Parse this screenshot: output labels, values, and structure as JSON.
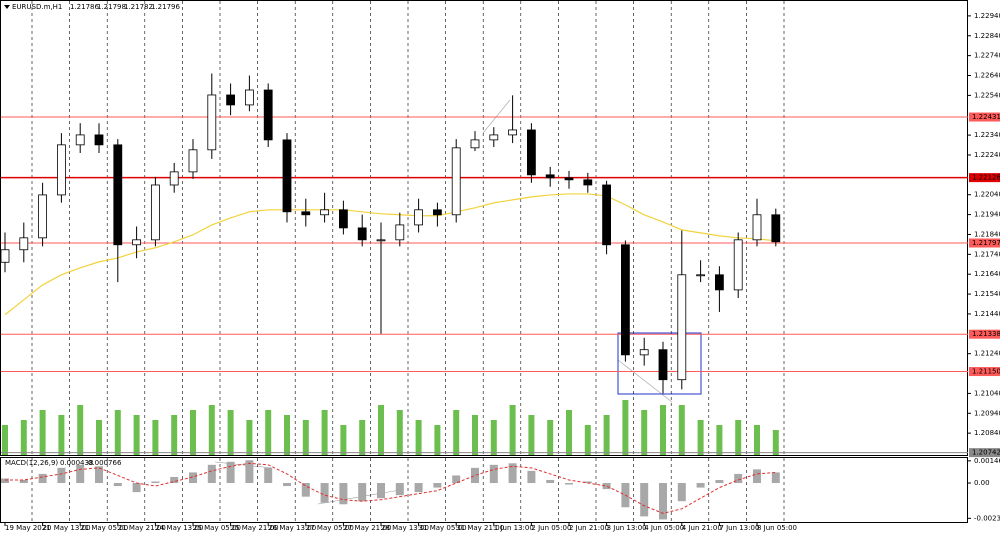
{
  "chart_data": [
    {
      "type": "candlestick",
      "symbol": "EURUSD.m,H1",
      "quote": [
        1.21786,
        1.21798,
        1.21782,
        1.21796
      ],
      "categories": [
        "19 May 2021",
        null,
        "20 May 13:00",
        null,
        "21 May 05:00",
        null,
        "21 May 21:00",
        null,
        "24 May 13:00",
        null,
        "25 May 05:00",
        null,
        "25 May 21:00",
        null,
        "26 May 13:00",
        null,
        "27 May 05:00",
        null,
        "27 May 21:00",
        null,
        "28 May 13:00",
        null,
        "31 May 05:00",
        null,
        "31 May 21:00",
        null,
        "1 Jun 13:00",
        null,
        "2 Jun 05:00",
        null,
        "2 Jun 21:00",
        null,
        "3 Jun 13:00",
        null,
        "4 Jun 05:00",
        null,
        "4 Jun 21:00",
        null,
        "7 Jun 13:00",
        null,
        "8 Jun 05:00",
        null
      ],
      "open": [
        1.217,
        1.21763,
        1.21823,
        1.22039,
        1.22291,
        1.22341,
        1.22291,
        1.21788,
        1.21813,
        1.22089,
        1.22155,
        1.22266,
        1.22542,
        1.22492,
        1.22567,
        1.22316,
        1.21954,
        1.21939,
        1.21964,
        1.21873,
        1.21813,
        1.21813,
        1.21888,
        1.21964,
        1.21939,
        1.22276,
        1.22316,
        1.22341,
        1.22366,
        1.2214,
        1.22125,
        1.22115,
        1.22089,
        1.21788,
        1.21234,
        1.2126,
        1.21109,
        1.21637,
        1.21637,
        1.21561,
        1.21813,
        1.21939
      ],
      "high": [
        1.2185,
        1.219,
        1.221,
        1.2235,
        1.224,
        1.224,
        1.2232,
        1.2188,
        1.2213,
        1.222,
        1.2232,
        1.2265,
        1.226,
        1.2264,
        1.226,
        1.2235,
        1.2202,
        1.2205,
        1.2201,
        1.2194,
        1.219,
        1.2195,
        1.2202,
        1.22,
        1.2232,
        1.2236,
        1.2238,
        1.2254,
        1.224,
        1.2218,
        1.2216,
        1.2215,
        1.2211,
        1.2181,
        1.2132,
        1.213,
        1.2186,
        1.2171,
        1.2168,
        1.2185,
        1.2202,
        1.2197
      ],
      "low": [
        1.2165,
        1.217,
        1.2178,
        1.22,
        1.2225,
        1.2225,
        1.216,
        1.2172,
        1.2178,
        1.2205,
        1.2212,
        1.2222,
        1.2244,
        1.2246,
        1.2228,
        1.219,
        1.2188,
        1.219,
        1.2184,
        1.2178,
        1.2134,
        1.2178,
        1.2185,
        1.2188,
        1.219,
        1.2226,
        1.2228,
        1.223,
        1.221,
        1.2208,
        1.2207,
        1.2205,
        1.2174,
        1.212,
        1.2118,
        1.2104,
        1.2106,
        1.216,
        1.2145,
        1.2152,
        1.2178,
        1.2178
      ],
      "close": [
        1.21763,
        1.21823,
        1.22039,
        1.22291,
        1.22341,
        1.22291,
        1.21788,
        1.21813,
        1.22089,
        1.22155,
        1.22266,
        1.22542,
        1.22492,
        1.22567,
        1.22316,
        1.21954,
        1.21939,
        1.21964,
        1.21873,
        1.21813,
        1.21813,
        1.21888,
        1.21964,
        1.21939,
        1.22276,
        1.22316,
        1.22341,
        1.22366,
        1.2214,
        1.22125,
        1.22115,
        1.22089,
        1.21788,
        1.21234,
        1.2126,
        1.21109,
        1.21637,
        1.21637,
        1.21561,
        1.21813,
        1.21939,
        1.21803
      ],
      "ma": {
        "color": "#f2d33c",
        "values": [
          1.21436,
          1.21511,
          1.21586,
          1.21637,
          1.21672,
          1.21702,
          1.21722,
          1.21752,
          1.21773,
          1.21803,
          1.21838,
          1.21888,
          1.21923,
          1.21954,
          1.21964,
          1.21964,
          1.21964,
          1.21964,
          1.21964,
          1.21954,
          1.21944,
          1.21939,
          1.21934,
          1.21934,
          1.21954,
          1.21974,
          1.21999,
          1.22014,
          1.22029,
          1.22039,
          1.22044,
          1.22044,
          1.22034,
          1.21989,
          1.21939,
          1.21903,
          1.21863,
          1.21848,
          1.21833,
          1.21823,
          1.21818,
          1.21808
        ]
      },
      "volume": {
        "color": "#6cbf4e",
        "values": [
          30,
          35,
          45,
          40,
          50,
          35,
          45,
          40,
          35,
          40,
          45,
          50,
          45,
          35,
          45,
          40,
          35,
          45,
          30,
          35,
          50,
          45,
          35,
          30,
          45,
          40,
          35,
          50,
          40,
          35,
          45,
          30,
          40,
          55,
          45,
          50,
          50,
          35,
          30,
          35,
          30,
          25
        ]
      },
      "levels": [
        {
          "value": 1.22431,
          "color": "#ff5a5a"
        },
        {
          "value": 1.22126,
          "color": "#e00000"
        },
        {
          "value": 1.21797,
          "color": "#ff5a5a"
        },
        {
          "value": 1.21338,
          "color": "#ff5a5a"
        },
        {
          "value": 1.2115,
          "label": "1.21150",
          "color": "#ff5a5a"
        },
        {
          "value": 1.20742,
          "color": "#8a8a8a"
        }
      ],
      "ylim": [
        1.2073,
        1.2302
      ],
      "yticks": [
        {
          "value": 1.2294,
          "label": "1.22940"
        },
        {
          "value": 1.2284,
          "label": "1.22840"
        },
        {
          "value": 1.2274,
          "label": "1.22740"
        },
        {
          "value": 1.2264,
          "label": "1.22640"
        },
        {
          "value": 1.2254,
          "label": "1.22540"
        },
        {
          "value": 1.2234,
          "label": "1.22340"
        },
        {
          "value": 1.2224,
          "label": "1.22240"
        },
        {
          "value": 1.2204,
          "label": "1.22040"
        },
        {
          "value": 1.2194,
          "label": "1.21940"
        },
        {
          "value": 1.2184,
          "label": "1.21840"
        },
        {
          "value": 1.2174,
          "label": "1.21740"
        },
        {
          "value": 1.2164,
          "label": "1.21640"
        },
        {
          "value": 1.2154,
          "label": "1.21540"
        },
        {
          "value": 1.2144,
          "label": "1.21440"
        },
        {
          "value": 1.2124,
          "label": "1.21240"
        },
        {
          "value": 1.2104,
          "label": "1.21040"
        },
        {
          "value": 1.2094,
          "label": "1.20940"
        },
        {
          "value": 1.2084,
          "label": "1.20840"
        }
      ],
      "grid": true
    },
    {
      "type": "macd",
      "title": "MACD(12,26,9)",
      "readings": [
        0.000438,
        0.000766
      ],
      "histogram": {
        "color": "#a8a8a8",
        "values": [
          0.0003,
          0.0002,
          0.0006,
          0.001,
          0.0012,
          0.0011,
          -0.0002,
          -0.0006,
          0.0001,
          0.0004,
          0.0007,
          0.0012,
          0.0014,
          0.0015,
          0.001,
          -0.0002,
          -0.0009,
          -0.0013,
          -0.0014,
          -0.0012,
          -0.001,
          -0.0008,
          -0.0006,
          -0.0003,
          0.0005,
          0.001,
          0.0012,
          0.0013,
          0.0008,
          0.0002,
          -0.0001,
          0.0001,
          -0.0004,
          -0.0016,
          -0.0022,
          -0.0024,
          -0.0012,
          -0.0003,
          0.0002,
          0.0006,
          0.0009,
          0.0007
        ]
      },
      "signal": {
        "color": "#e03030",
        "values": [
          0.0002,
          0.0002,
          0.0004,
          0.0006,
          0.0009,
          0.001,
          0.0005,
          0.0,
          -0.0002,
          0.0001,
          0.0004,
          0.0008,
          0.0011,
          0.0013,
          0.0012,
          0.0006,
          -0.0002,
          -0.0008,
          -0.0011,
          -0.0012,
          -0.0011,
          -0.0009,
          -0.0007,
          -0.0005,
          0.0,
          0.0005,
          0.0009,
          0.0011,
          0.001,
          0.0006,
          0.0002,
          0.0,
          -0.0002,
          -0.0008,
          -0.0015,
          -0.002,
          -0.0017,
          -0.001,
          -0.0003,
          0.0002,
          0.0006,
          0.0007
        ]
      },
      "ylim": [
        -0.00257,
        0.00165
      ],
      "yticks": [
        0.001462,
        {
          "value": 0,
          "label": "0.00"
        },
        -0.002328
      ]
    }
  ]
}
